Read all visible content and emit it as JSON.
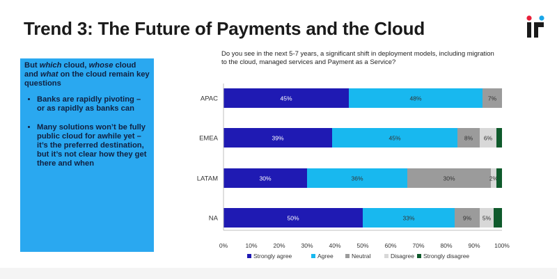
{
  "slide": {
    "title": "Trend 3: The Future of Payments and the Cloud"
  },
  "callout": {
    "lead_parts": [
      "But ",
      "which",
      " cloud, ",
      "whose",
      " cloud and ",
      "what",
      " on the cloud remain key questions"
    ],
    "bullets": [
      "Banks are rapidly pivoting – or as rapidly as banks can",
      "Many solutions won’t be fully public cloud for awhile yet – it’s the preferred destination, but it’s not clear how they get there and when"
    ]
  },
  "chart_data": {
    "type": "bar",
    "orientation": "horizontal",
    "stacked": true,
    "title": "Do you see in the next 5-7 years, a significant shift in deployment models, including migration to the cloud, managed services and Payment as a Service?",
    "categories": [
      "APAC",
      "EMEA",
      "LATAM",
      "NA"
    ],
    "series": [
      {
        "name": "Strongly agree",
        "color": "#1f1ab3",
        "values": [
          45,
          39,
          30,
          50
        ],
        "labels": [
          "45%",
          "39%",
          "30%",
          "50%"
        ]
      },
      {
        "name": "Agree",
        "color": "#18b8ef",
        "values": [
          48,
          45,
          36,
          33
        ],
        "labels": [
          "48%",
          "45%",
          "36%",
          "33%"
        ]
      },
      {
        "name": "Neutral",
        "color": "#9b9b9b",
        "values": [
          7,
          8,
          30,
          9
        ],
        "labels": [
          "7%",
          "8%",
          "30%",
          "9%"
        ]
      },
      {
        "name": "Disagree",
        "color": "#d8d8d8",
        "values": [
          0,
          6,
          2,
          5
        ],
        "labels": [
          "",
          "6%",
          "2%",
          "5%"
        ]
      },
      {
        "name": "Strongly disagree",
        "color": "#0f5a2c",
        "values": [
          0,
          2,
          2,
          3
        ],
        "labels": [
          "",
          "",
          "",
          ""
        ]
      }
    ],
    "xlim": [
      0,
      100
    ],
    "x_ticks": [
      "0%",
      "10%",
      "20%",
      "30%",
      "40%",
      "50%",
      "60%",
      "70%",
      "80%",
      "90%",
      "100%"
    ],
    "legend_position": "bottom",
    "grid": false
  }
}
